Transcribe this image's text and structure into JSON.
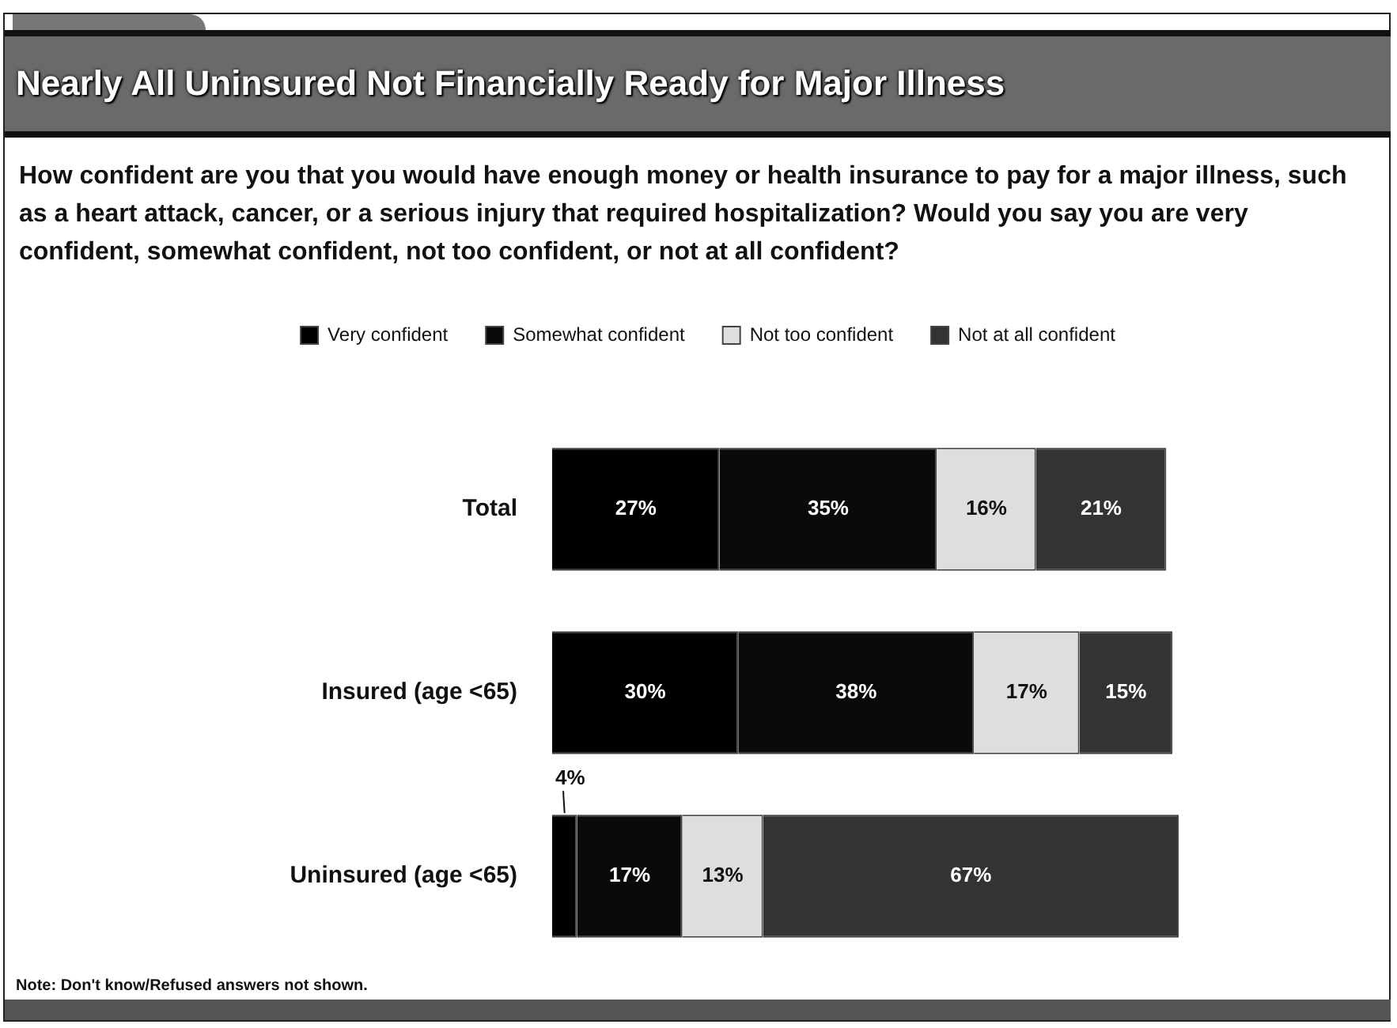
{
  "chart_data": {
    "type": "bar",
    "orientation": "horizontal",
    "stacked": true,
    "title": "Nearly All Uninsured Not Financially Ready for Major Illness",
    "subtitle": "How confident are you that you would have enough money or health insurance to pay for a major illness, such as a heart attack, cancer, or a serious injury that required hospitalization? Would you say you are very confident, somewhat confident, not too confident, or not at all confident?",
    "categories": [
      "Total",
      "Insured (age <65)",
      "Uninsured (age <65)"
    ],
    "series": [
      {
        "name": "Very confident",
        "color": "#000000",
        "values": [
          27,
          30,
          4
        ],
        "value_labels": [
          "27%",
          "30%",
          "4%"
        ]
      },
      {
        "name": "Somewhat confident",
        "color": "#0a0a0a",
        "values": [
          35,
          38,
          17
        ],
        "value_labels": [
          "35%",
          "38%",
          "17%"
        ]
      },
      {
        "name": "Not too confident",
        "color": "#dedede",
        "values": [
          16,
          17,
          13
        ],
        "value_labels": [
          "16%",
          "17%",
          "13%"
        ]
      },
      {
        "name": "Not at all confident",
        "color": "#333333",
        "values": [
          21,
          15,
          67
        ],
        "value_labels": [
          "21%",
          "15%",
          "67%"
        ]
      }
    ],
    "legend": "top",
    "tick_labels": "y",
    "annotations": [
      "Note: Don't know/Refused answers not shown."
    ]
  }
}
